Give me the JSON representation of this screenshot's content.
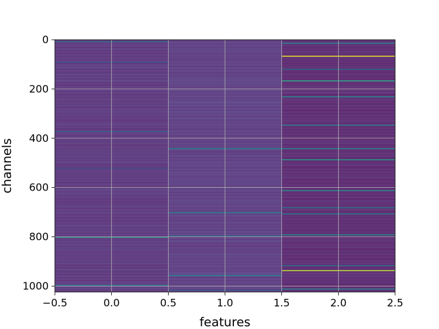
{
  "chart_data": {
    "type": "heatmap",
    "title": "",
    "xlabel": "features",
    "ylabel": "channels",
    "x_ticks": [
      "−0.5",
      "0.0",
      "0.5",
      "1.0",
      "1.5",
      "2.0",
      "2.5"
    ],
    "x_tick_values": [
      -0.5,
      0.0,
      0.5,
      1.0,
      1.5,
      2.0,
      2.5
    ],
    "y_ticks": [
      "0",
      "200",
      "400",
      "600",
      "800",
      "1000"
    ],
    "y_tick_values": [
      0,
      200,
      400,
      600,
      800,
      1000
    ],
    "xlim": [
      -0.5,
      2.5
    ],
    "ylim": [
      1024,
      0
    ],
    "n_channels": 1024,
    "n_features": 3,
    "colormap": "viridis",
    "grid": true,
    "column_base_level": [
      0.08,
      0.1,
      0.03
    ],
    "highlights": [
      {
        "feature": 0,
        "channel": 6,
        "level": 0.35
      },
      {
        "feature": 0,
        "channel": 90,
        "level": 0.25
      },
      {
        "feature": 0,
        "channel": 370,
        "level": 0.3
      },
      {
        "feature": 0,
        "channel": 520,
        "level": 0.22
      },
      {
        "feature": 0,
        "channel": 800,
        "level": 0.55
      },
      {
        "feature": 0,
        "channel": 995,
        "level": 0.4
      },
      {
        "feature": 1,
        "channel": 440,
        "level": 0.45
      },
      {
        "feature": 1,
        "channel": 700,
        "level": 0.45
      },
      {
        "feature": 1,
        "channel": 955,
        "level": 0.45
      },
      {
        "feature": 1,
        "channel": 795,
        "level": 0.35
      },
      {
        "feature": 1,
        "channel": 1015,
        "level": 0.3
      },
      {
        "feature": 2,
        "channel": 12,
        "level": 0.45
      },
      {
        "feature": 2,
        "channel": 65,
        "level": 0.97
      },
      {
        "feature": 2,
        "channel": 118,
        "level": 0.35
      },
      {
        "feature": 2,
        "channel": 165,
        "level": 0.6
      },
      {
        "feature": 2,
        "channel": 230,
        "level": 0.5
      },
      {
        "feature": 2,
        "channel": 345,
        "level": 0.45
      },
      {
        "feature": 2,
        "channel": 440,
        "level": 0.5
      },
      {
        "feature": 2,
        "channel": 485,
        "level": 0.55
      },
      {
        "feature": 2,
        "channel": 610,
        "level": 0.5
      },
      {
        "feature": 2,
        "channel": 680,
        "level": 0.4
      },
      {
        "feature": 2,
        "channel": 705,
        "level": 0.45
      },
      {
        "feature": 2,
        "channel": 790,
        "level": 0.5
      },
      {
        "feature": 2,
        "channel": 935,
        "level": 0.9
      },
      {
        "feature": 2,
        "channel": 915,
        "level": 0.4
      },
      {
        "feature": 2,
        "channel": 1010,
        "level": 0.45
      }
    ]
  }
}
